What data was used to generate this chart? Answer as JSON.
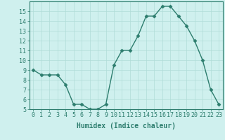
{
  "x": [
    0,
    1,
    2,
    3,
    4,
    5,
    6,
    7,
    8,
    9,
    10,
    11,
    12,
    13,
    14,
    15,
    16,
    17,
    18,
    19,
    20,
    21,
    22,
    23
  ],
  "y": [
    9,
    8.5,
    8.5,
    8.5,
    7.5,
    5.5,
    5.5,
    5.0,
    5.0,
    5.5,
    9.5,
    11.0,
    11.0,
    12.5,
    14.5,
    14.5,
    15.5,
    15.5,
    14.5,
    13.5,
    12.0,
    10.0,
    7.0,
    5.5
  ],
  "line_color": "#2d7d6e",
  "marker": "D",
  "markersize": 2.5,
  "linewidth": 1.0,
  "xlabel": "Humidex (Indice chaleur)",
  "xlabel_fontsize": 7,
  "xlim": [
    -0.5,
    23.5
  ],
  "ylim": [
    5,
    16
  ],
  "yticks": [
    5,
    6,
    7,
    8,
    9,
    10,
    11,
    12,
    13,
    14,
    15
  ],
  "xticks": [
    0,
    1,
    2,
    3,
    4,
    5,
    6,
    7,
    8,
    9,
    10,
    11,
    12,
    13,
    14,
    15,
    16,
    17,
    18,
    19,
    20,
    21,
    22,
    23
  ],
  "bg_color": "#cff0ee",
  "grid_color": "#b0dcd8",
  "tick_fontsize": 6,
  "tick_color": "#2d7d6e",
  "axis_color": "#2d7d6e",
  "xlabel_fontweight": "bold"
}
